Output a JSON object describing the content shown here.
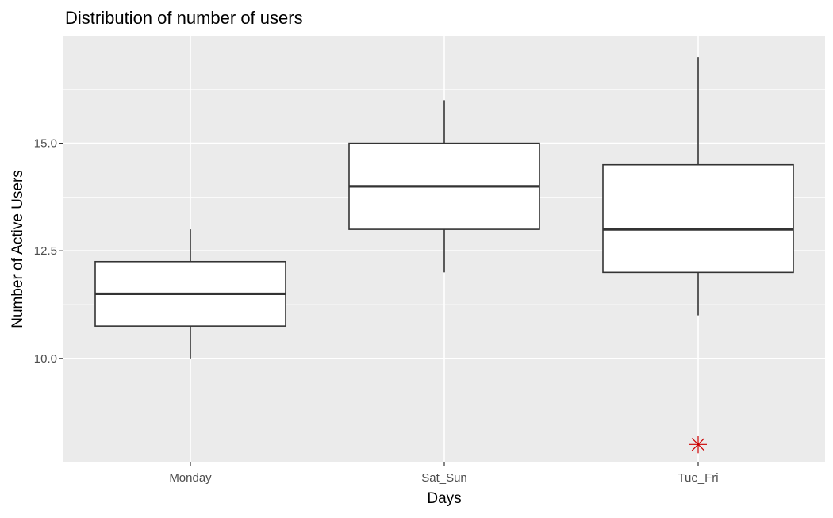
{
  "chart_data": {
    "type": "boxplot",
    "title": "Distribution of number of users",
    "xlabel": "Days",
    "ylabel": "Number of Active Users",
    "categories": [
      "Monday",
      "Sat_Sun",
      "Tue_Fri"
    ],
    "boxes": [
      {
        "category": "Monday",
        "whisker_low": 10,
        "q1": 10.75,
        "median": 11.5,
        "q3": 12.25,
        "whisker_high": 13
      },
      {
        "category": "Sat_Sun",
        "whisker_low": 12,
        "q1": 13,
        "median": 14,
        "q3": 15,
        "whisker_high": 16
      },
      {
        "category": "Tue_Fri",
        "whisker_low": 11,
        "q1": 12,
        "median": 13,
        "q3": 14.5,
        "whisker_high": 17
      }
    ],
    "outliers": [
      {
        "category": "Tue_Fri",
        "value": 8
      }
    ],
    "y_ticks": [
      {
        "value": 10,
        "label": "10.0"
      },
      {
        "value": 12.5,
        "label": "12.5"
      },
      {
        "value": 15,
        "label": "15.0"
      }
    ],
    "y_minor_ticks": [
      8.75,
      11.25,
      13.75,
      16.25
    ],
    "ylim": [
      7.6,
      17.5
    ],
    "grid": true,
    "colors": {
      "panel": "#EBEBEB",
      "grid": "#FFFFFF",
      "box_line": "#333333",
      "box_fill": "#FFFFFF",
      "outlier": "#CC0000",
      "axis_text": "#4D4D4D",
      "title_text": "#000000"
    },
    "outlier_shape": "asterisk"
  }
}
